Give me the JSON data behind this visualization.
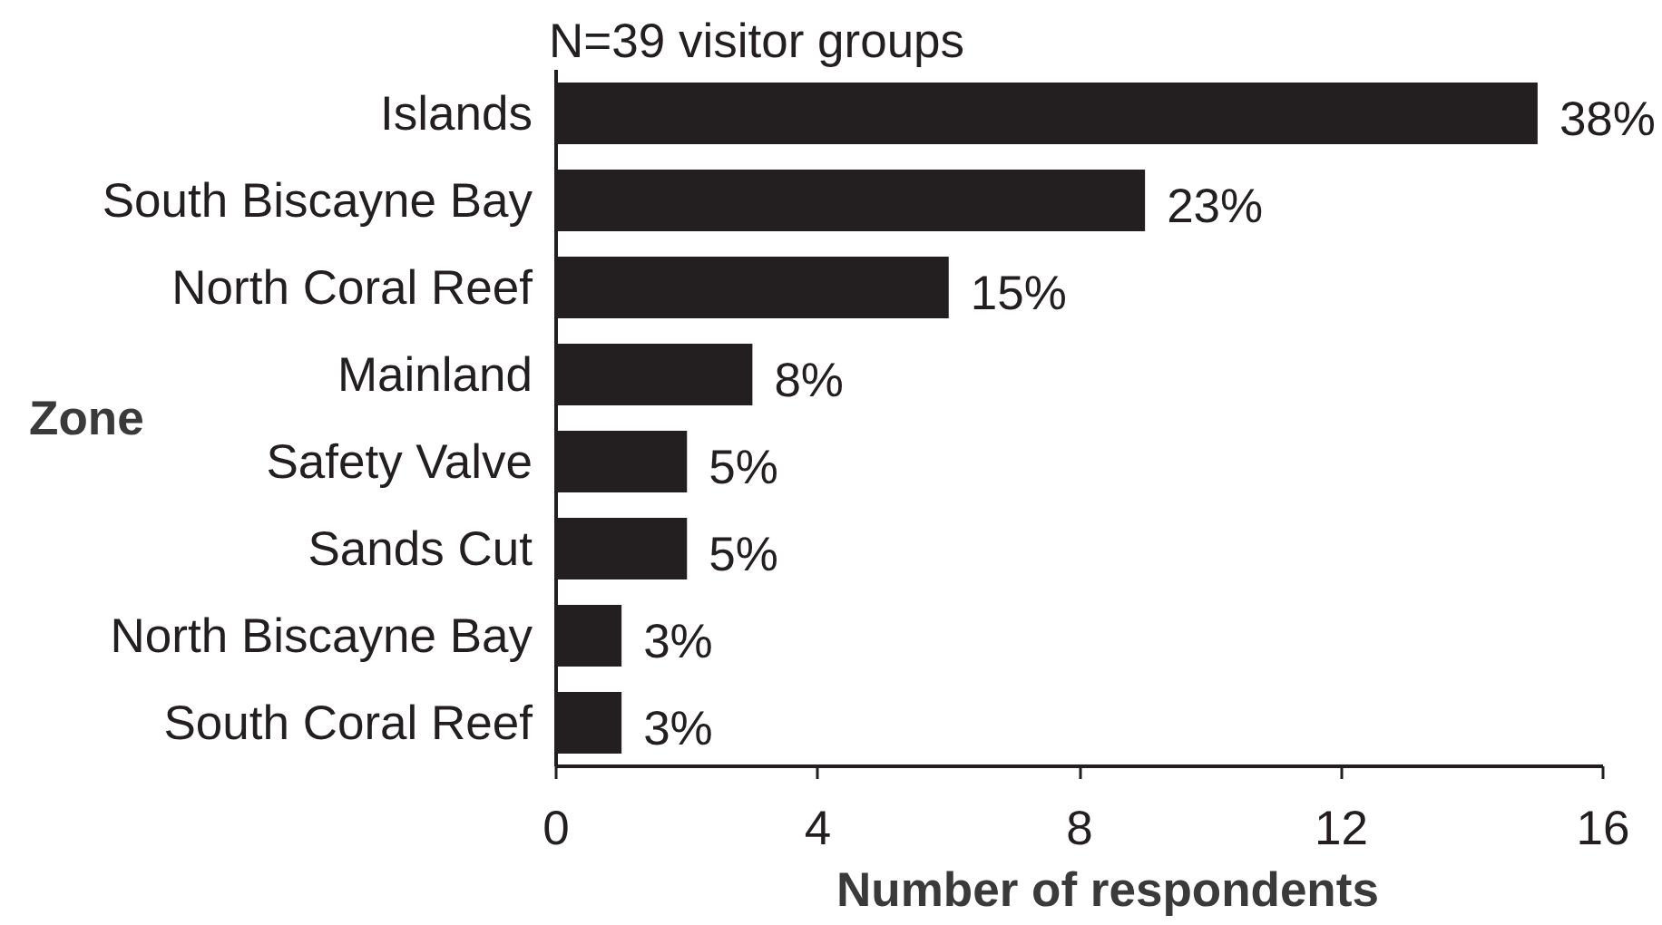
{
  "chart_data": {
    "type": "bar",
    "orientation": "horizontal",
    "title": "N=39 visitor groups",
    "xlabel": "Number of respondents",
    "ylabel": "Zone",
    "categories": [
      "Islands",
      "South Biscayne Bay",
      "North Coral Reef",
      "Mainland",
      "Safety Valve",
      "Sands Cut",
      "North Biscayne Bay",
      "South Coral Reef"
    ],
    "values": [
      15,
      9,
      6,
      3,
      2,
      2,
      1,
      1
    ],
    "color": "#231f20",
    "xlim": [
      0,
      16
    ],
    "xticks": [
      0,
      4,
      8,
      12,
      16
    ],
    "annotations": [
      {
        "text": "38%",
        "x": 15,
        "y": "Islands"
      },
      {
        "text": "23%",
        "x": 9,
        "y": "South Biscayne Bay"
      },
      {
        "text": "15%",
        "x": 6,
        "y": "North Coral Reef"
      },
      {
        "text": "8%",
        "x": 3,
        "y": "Mainland"
      },
      {
        "text": "5%",
        "x": 2,
        "y": "Safety Valve"
      },
      {
        "text": "5%",
        "x": 2,
        "y": "Sands Cut"
      },
      {
        "text": "3%",
        "x": 1,
        "y": "North Biscayne Bay"
      },
      {
        "text": "3%",
        "x": 1,
        "y": "South Coral Reef"
      }
    ]
  }
}
